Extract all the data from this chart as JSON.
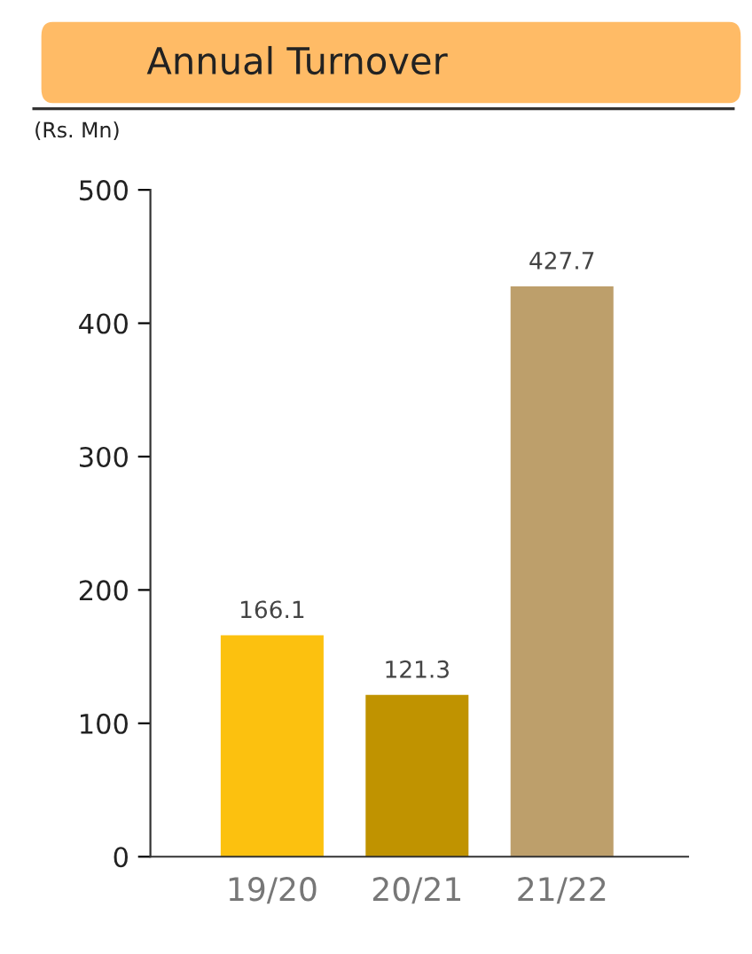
{
  "chart_data": {
    "type": "bar",
    "title": "Annual Turnover",
    "ylabel": "(Rs. Mn)",
    "categories": [
      "19/20",
      "20/21",
      "21/22"
    ],
    "values": [
      166.1,
      121.3,
      427.7
    ],
    "colors": [
      "#fcc10f",
      "#c09300",
      "#bd9f6b"
    ],
    "ylim": [
      0,
      500
    ],
    "yticks": [
      0,
      100,
      200,
      300,
      400,
      500
    ],
    "data_labels": true,
    "grid": false,
    "legend": false
  }
}
